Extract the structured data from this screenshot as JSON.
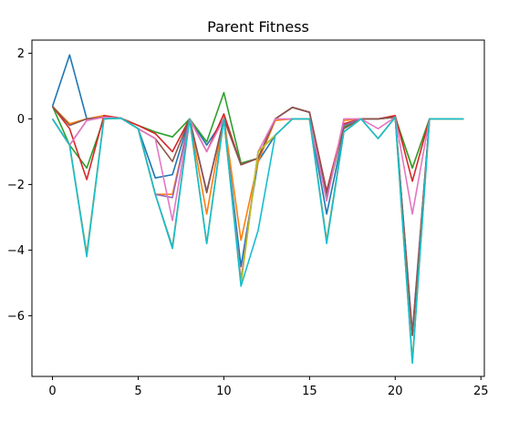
{
  "chart_data": {
    "type": "line",
    "title": "Parent Fitness",
    "xlabel": "",
    "ylabel": "",
    "xlim": [
      -1.2,
      25.2
    ],
    "ylim": [
      -7.85,
      2.4
    ],
    "xticks": [
      0,
      5,
      10,
      15,
      20,
      25
    ],
    "yticks": [
      2,
      0,
      -2,
      -4,
      -6
    ],
    "grid": false,
    "x": [
      0,
      1,
      2,
      3,
      4,
      5,
      6,
      7,
      8,
      9,
      10,
      11,
      12,
      13,
      14,
      15,
      16,
      17,
      18,
      19,
      20,
      21,
      22,
      23,
      24
    ],
    "series": [
      {
        "color": "#1f77b4",
        "values": [
          0.38,
          1.95,
          0.0,
          0.05,
          0.02,
          -0.3,
          -1.8,
          -1.7,
          0.0,
          -0.8,
          0.0,
          -4.5,
          -1.3,
          -0.5,
          0.0,
          0.0,
          -2.9,
          -0.4,
          0.0,
          0.0,
          0.05,
          -6.6,
          0.0,
          0.0,
          0.0
        ]
      },
      {
        "color": "#ff7f0e",
        "values": [
          0.38,
          -0.15,
          0.0,
          0.1,
          0.02,
          -0.3,
          -2.3,
          -2.3,
          0.0,
          -2.9,
          0.05,
          -3.7,
          -1.3,
          -0.05,
          0.0,
          0.0,
          -2.4,
          -0.05,
          0.0,
          0.0,
          0.05,
          -1.5,
          0.0,
          0.0,
          0.0
        ]
      },
      {
        "color": "#2ca02c",
        "values": [
          0.38,
          -0.8,
          -1.5,
          0.0,
          0.02,
          -0.2,
          -0.4,
          -0.55,
          0.0,
          -0.7,
          0.8,
          -1.35,
          -1.2,
          0.0,
          0.35,
          0.2,
          -2.4,
          -0.25,
          0.0,
          0.0,
          0.05,
          -1.5,
          0.0,
          0.0,
          0.0
        ]
      },
      {
        "color": "#d62728",
        "values": [
          0.38,
          -0.3,
          -1.85,
          0.1,
          0.02,
          -0.2,
          -0.45,
          -1.0,
          0.0,
          -1.0,
          0.15,
          -1.4,
          -1.2,
          0.0,
          0.35,
          0.2,
          -2.2,
          -0.15,
          0.0,
          0.0,
          0.1,
          -1.9,
          0.0,
          0.0,
          0.0
        ]
      },
      {
        "color": "#9467bd",
        "values": [
          0.0,
          -0.8,
          -0.05,
          0.05,
          0.02,
          -0.3,
          -2.3,
          -2.4,
          0.0,
          -2.2,
          0.0,
          -1.4,
          -1.2,
          0.0,
          0.35,
          0.2,
          -2.3,
          -0.2,
          0.0,
          0.0,
          0.05,
          -6.5,
          0.0,
          0.0,
          0.0
        ]
      },
      {
        "color": "#8c564b",
        "values": [
          0.38,
          -0.2,
          0.0,
          0.05,
          0.02,
          -0.3,
          -0.6,
          -1.3,
          0.0,
          -2.25,
          0.0,
          -1.4,
          -1.2,
          0.0,
          0.35,
          0.2,
          -2.25,
          -0.3,
          0.0,
          0.0,
          0.05,
          -6.6,
          0.0,
          0.0,
          0.0
        ]
      },
      {
        "color": "#e377c2",
        "values": [
          0.0,
          -0.8,
          -0.05,
          0.05,
          0.02,
          -0.3,
          -0.6,
          -3.1,
          0.0,
          -1.0,
          0.0,
          -4.9,
          -1.0,
          0.0,
          0.0,
          0.0,
          -2.5,
          0.0,
          0.0,
          -0.3,
          0.05,
          -2.9,
          0.0,
          0.0,
          0.0
        ]
      },
      {
        "color": "#7f7f7f",
        "values": [
          0.0,
          -0.8,
          -4.1,
          0.0,
          0.02,
          -0.3,
          -2.3,
          -3.9,
          0.0,
          -3.8,
          0.0,
          -5.0,
          -1.0,
          -0.5,
          0.0,
          0.0,
          -3.7,
          -0.4,
          0.0,
          -0.6,
          0.05,
          -7.4,
          0.0,
          0.0,
          0.0
        ]
      },
      {
        "color": "#bcbd22",
        "values": [
          0.0,
          -0.8,
          -4.15,
          0.0,
          0.02,
          -0.3,
          -2.3,
          -3.95,
          0.0,
          -3.8,
          0.0,
          -5.05,
          -1.0,
          -0.5,
          0.0,
          0.0,
          -3.75,
          -0.4,
          0.0,
          -0.6,
          0.05,
          -7.4,
          0.0,
          0.0,
          0.0
        ]
      },
      {
        "color": "#17becf",
        "values": [
          0.0,
          -0.8,
          -4.2,
          0.0,
          0.02,
          -0.3,
          -2.3,
          -3.95,
          0.0,
          -3.8,
          0.0,
          -5.1,
          -3.4,
          -0.5,
          0.0,
          0.0,
          -3.8,
          -0.4,
          0.0,
          -0.6,
          0.05,
          -7.45,
          0.0,
          0.0,
          0.0
        ]
      }
    ]
  }
}
